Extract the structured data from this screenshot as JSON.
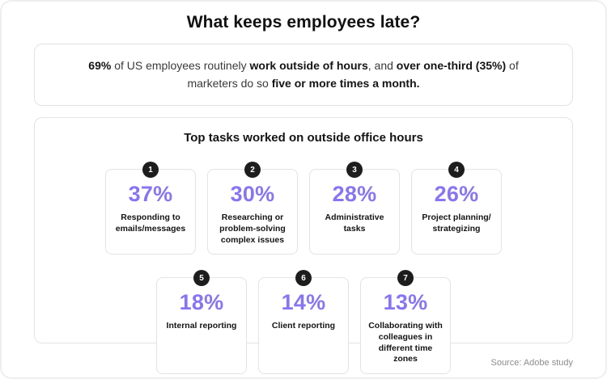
{
  "page": {
    "title": "What keeps employees late?",
    "source": "Source: Adobe study"
  },
  "summary": {
    "segments": [
      {
        "text": "69%"
      },
      {
        "text": " of US employees routinely "
      },
      {
        "text": "work outside of hours"
      },
      {
        "text": ", and "
      },
      {
        "text": "over one-third (35%)"
      },
      {
        "text": " of marketers do so "
      },
      {
        "text": "five or more times a month."
      }
    ]
  },
  "tasks_panel": {
    "heading": "Top tasks worked on outside office hours",
    "items": [
      {
        "rank": "1",
        "value": "37%",
        "label": "Responding to emails/messages"
      },
      {
        "rank": "2",
        "value": "30%",
        "label": "Researching or problem-solving complex issues"
      },
      {
        "rank": "3",
        "value": "28%",
        "label": "Administrative tasks"
      },
      {
        "rank": "4",
        "value": "26%",
        "label": "Project planning/ strategizing"
      },
      {
        "rank": "5",
        "value": "18%",
        "label": "Internal reporting"
      },
      {
        "rank": "6",
        "value": "14%",
        "label": "Client reporting"
      },
      {
        "rank": "7",
        "value": "13%",
        "label": "Collaborating with colleagues in different time zones"
      }
    ]
  },
  "colors": {
    "accent_purple": "#8775f2",
    "badge_dark": "#1d1d1d"
  },
  "chart_data": {
    "type": "bar",
    "title": "Top tasks worked on outside office hours",
    "categories": [
      "Responding to emails/messages",
      "Researching or problem-solving complex issues",
      "Administrative tasks",
      "Project planning/strategizing",
      "Internal reporting",
      "Client reporting",
      "Collaborating with colleagues in different time zones"
    ],
    "values": [
      37,
      30,
      28,
      26,
      18,
      14,
      13
    ],
    "unit": "%",
    "annotations": [
      "69% of US employees routinely work outside of hours",
      "over one-third (35%) of marketers do so five or more times a month"
    ],
    "source": "Source: Adobe study"
  }
}
